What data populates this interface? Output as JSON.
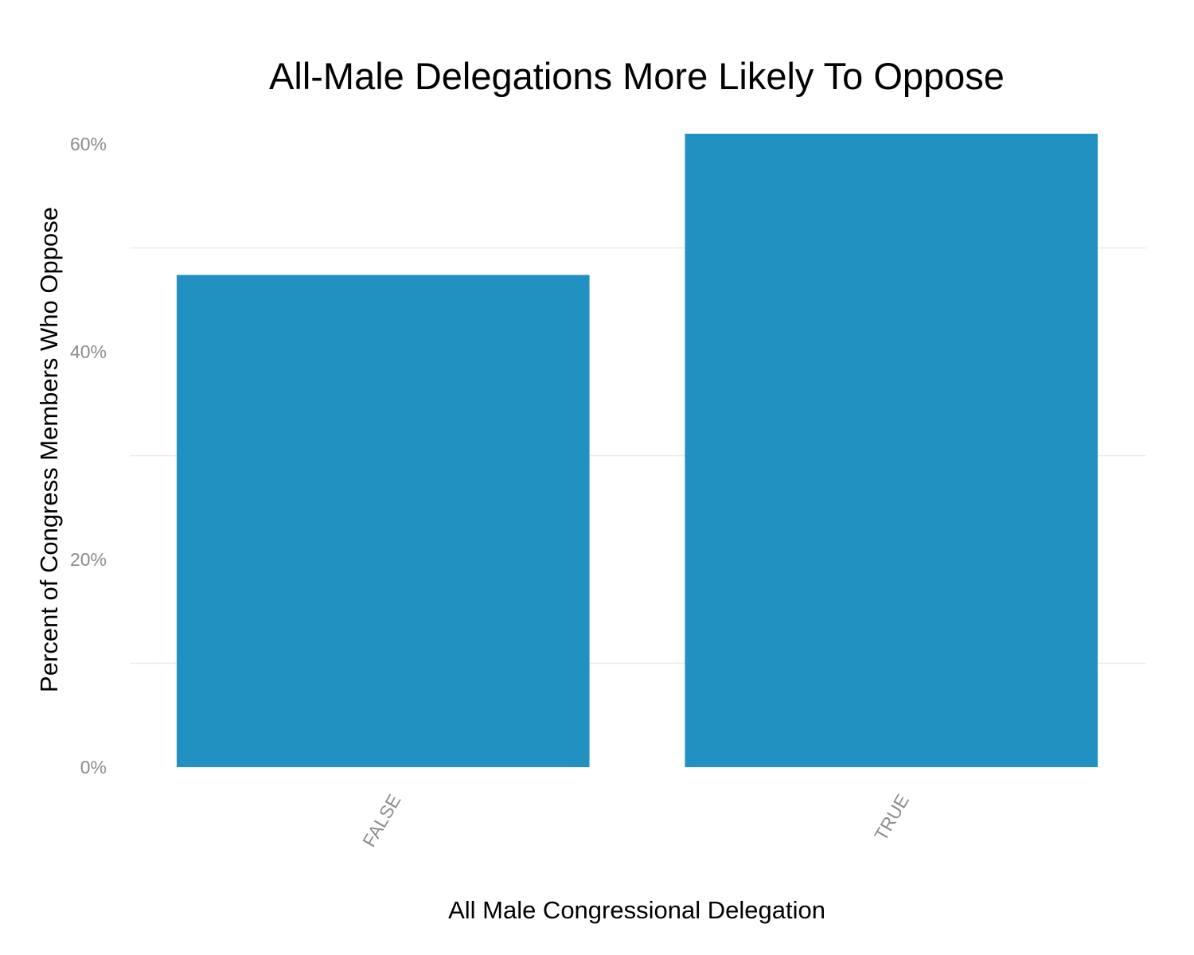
{
  "colors": {
    "bar": "#2091c0",
    "grid": "#ebebeb",
    "tick_text": "#8c8c8c",
    "text": "#000000"
  },
  "chart_data": {
    "type": "bar",
    "title": "All-Male Delegations More Likely To Oppose",
    "xlabel": "All Male Congressional Delegation",
    "ylabel": "Percent of Congress Members Who Oppose",
    "categories": [
      "FALSE",
      "TRUE"
    ],
    "values": [
      47.4,
      61.0
    ],
    "ylim": [
      0,
      61.0
    ],
    "y_ticks": [
      0,
      20,
      40,
      60
    ],
    "y_tick_labels": [
      "0%",
      "20%",
      "40%",
      "60%"
    ],
    "y_minor_grid": [
      10,
      30,
      50
    ],
    "grid": true,
    "legend": "none",
    "x_tick_rotation": -60
  }
}
